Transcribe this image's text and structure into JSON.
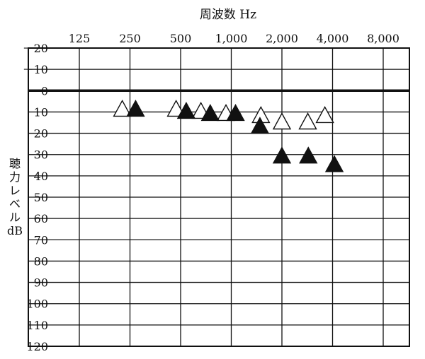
{
  "chart_data": {
    "type": "scatter",
    "title": "周波数 Hz",
    "xlabel": "周波数 Hz",
    "ylabel_chars": [
      "聴",
      "力",
      "レ",
      "ベ",
      "ル"
    ],
    "ylabel_unit": "dB",
    "x_scale": "log",
    "x_categories": [
      "125",
      "250",
      "500",
      "1,000",
      "2,000",
      "4,000",
      "8,000"
    ],
    "x_freqs": [
      125,
      250,
      500,
      1000,
      2000,
      4000,
      8000
    ],
    "ylim": [
      -20,
      120
    ],
    "y_ticks": [
      "－20",
      "－10",
      "0",
      "10",
      "20",
      "30",
      "40",
      "50",
      "60",
      "70",
      "80",
      "90",
      "100",
      "110",
      "120"
    ],
    "y_tick_values": [
      -20,
      -10,
      0,
      10,
      20,
      30,
      40,
      50,
      60,
      70,
      80,
      90,
      100,
      110,
      120
    ],
    "reference_line_db": 0,
    "grid": true,
    "series": [
      {
        "marker": "open-triangle",
        "points": [
          {
            "freq": 225,
            "db": 9
          },
          {
            "freq": 470,
            "db": 9
          },
          {
            "freq": 660,
            "db": 10
          },
          {
            "freq": 930,
            "db": 11
          },
          {
            "freq": 1500,
            "db": 12
          },
          {
            "freq": 2000,
            "db": 15
          },
          {
            "freq": 2850,
            "db": 15
          },
          {
            "freq": 3600,
            "db": 12
          }
        ]
      },
      {
        "marker": "filled-triangle",
        "points": [
          {
            "freq": 270,
            "db": 9
          },
          {
            "freq": 540,
            "db": 10
          },
          {
            "freq": 750,
            "db": 11
          },
          {
            "freq": 1060,
            "db": 11
          },
          {
            "freq": 1480,
            "db": 17
          },
          {
            "freq": 2000,
            "db": 31
          },
          {
            "freq": 2870,
            "db": 31
          },
          {
            "freq": 4100,
            "db": 35
          }
        ]
      }
    ]
  }
}
